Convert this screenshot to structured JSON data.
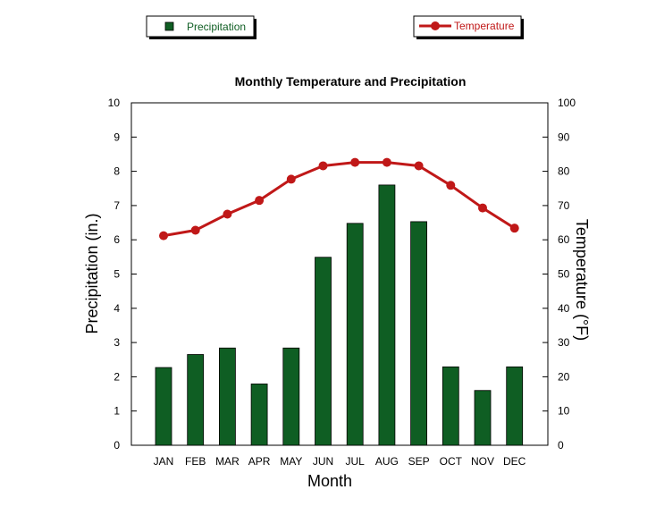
{
  "chart_data": {
    "type": "bar",
    "title": "Monthly Temperature and Precipitation",
    "xlabel": "Month",
    "ylabel": "Precipitation (in.)",
    "y2label": "Temperature (°F)",
    "categories": [
      "JAN",
      "FEB",
      "MAR",
      "APR",
      "MAY",
      "JUN",
      "JUL",
      "AUG",
      "SEP",
      "OCT",
      "NOV",
      "DEC"
    ],
    "ylim": [
      0,
      10
    ],
    "y2lim": [
      0,
      100
    ],
    "yticks": [
      "0",
      "1",
      "2",
      "3",
      "4",
      "5",
      "6",
      "7",
      "8",
      "9",
      "10"
    ],
    "y2ticks": [
      "0",
      "10",
      "20",
      "30",
      "40",
      "50",
      "60",
      "70",
      "80",
      "90",
      "100"
    ],
    "grid": false,
    "legend_placement": "top",
    "series": [
      {
        "name": "Precipitation",
        "type": "bar",
        "axis": "left",
        "color": "#0f5e23",
        "values": [
          2.27,
          2.65,
          2.84,
          1.79,
          2.84,
          5.49,
          6.48,
          7.6,
          6.53,
          2.29,
          1.6,
          2.29
        ]
      },
      {
        "name": "Temperature",
        "type": "line",
        "axis": "right",
        "color": "#c01818",
        "values": [
          61.2,
          62.8,
          67.5,
          71.5,
          77.7,
          81.6,
          82.6,
          82.6,
          81.6,
          75.9,
          69.3,
          63.4
        ]
      }
    ]
  }
}
